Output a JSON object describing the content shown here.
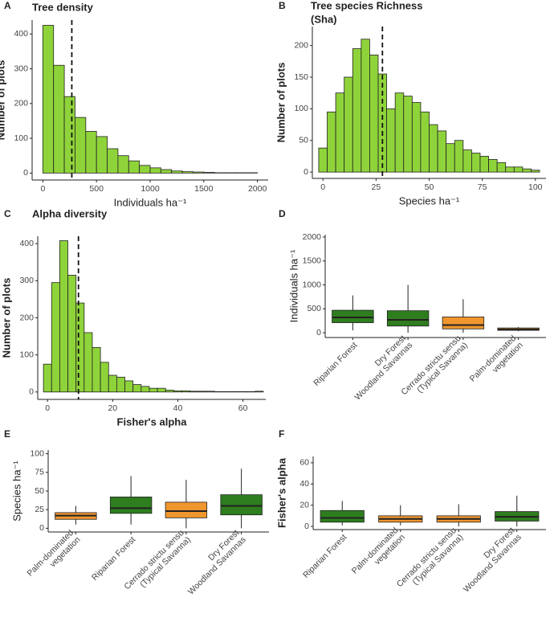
{
  "chart_data": [
    {
      "type": "histogram",
      "label": "A",
      "title": [
        "Tree density"
      ],
      "x_label": "Individuals ha⁻¹",
      "y_label": "Number of plots",
      "bins": [
        0,
        100,
        200,
        300,
        400,
        500,
        600,
        700,
        800,
        900,
        1000,
        1100,
        1200,
        1300,
        1400,
        1500,
        1600,
        1700,
        1800,
        1900,
        2000
      ],
      "values": [
        425,
        310,
        220,
        160,
        120,
        105,
        70,
        50,
        35,
        22,
        15,
        10,
        6,
        4,
        3,
        2,
        1,
        1,
        1,
        1
      ],
      "color": "#8fd33a",
      "vline": 270,
      "xlim": [
        -100,
        2100
      ],
      "xticks": [
        0,
        500,
        1000,
        1500,
        2000
      ],
      "ylim": [
        -20,
        440
      ],
      "yticks": [
        0,
        100,
        200,
        300,
        400
      ]
    },
    {
      "type": "histogram",
      "label": "B",
      "title": [
        "Tree species Richness",
        " (Sha)"
      ],
      "x_label": "Species ha⁻¹",
      "y_label": "Number of plots",
      "bins": [
        -2,
        2,
        6,
        10,
        14,
        18,
        22,
        26,
        30,
        34,
        38,
        42,
        46,
        50,
        54,
        58,
        62,
        66,
        70,
        74,
        78,
        82,
        86,
        90,
        94,
        98,
        102
      ],
      "values": [
        38,
        95,
        125,
        150,
        195,
        210,
        185,
        155,
        100,
        125,
        120,
        110,
        95,
        75,
        65,
        45,
        50,
        35,
        30,
        25,
        20,
        15,
        8,
        8,
        5,
        3
      ],
      "color": "#8fd33a",
      "vline": 28,
      "xlim": [
        -5,
        105
      ],
      "xticks": [
        0,
        25,
        50,
        75,
        100
      ],
      "ylim": [
        -10,
        230
      ],
      "yticks": [
        0,
        50,
        100,
        150,
        200
      ]
    },
    {
      "type": "histogram",
      "label": "C",
      "title": [
        "Alpha diversity"
      ],
      "x_label": "Fisher's alpha",
      "y_label": "Number of plots",
      "bins": [
        -1.25,
        1.25,
        3.75,
        6.25,
        8.75,
        11.25,
        13.75,
        16.25,
        18.75,
        21.25,
        23.75,
        26.25,
        28.75,
        31.25,
        33.75,
        36.25,
        38.75,
        41.25,
        43.75,
        46.25,
        48.75,
        51.25,
        53.75,
        56.25,
        58.75,
        61.25,
        63.75,
        66.25
      ],
      "values": [
        75,
        295,
        408,
        315,
        240,
        160,
        120,
        80,
        45,
        40,
        30,
        20,
        15,
        10,
        10,
        5,
        3,
        3,
        2,
        2,
        2,
        1,
        1,
        1,
        1,
        1,
        2
      ],
      "color": "#8fd33a",
      "vline": 9.5,
      "xlim": [
        -3,
        67
      ],
      "xticks": [
        0,
        20,
        40,
        60
      ],
      "ylim": [
        -20,
        420
      ],
      "yticks": [
        0,
        100,
        200,
        300,
        400
      ]
    },
    {
      "type": "box",
      "label": "D",
      "y_label": "Individuals ha⁻¹",
      "categories": [
        [
          "Riparian Forest"
        ],
        [
          "Dry Forest",
          "Woodland Savannas"
        ],
        [
          "Cerrado strictu sensu",
          "(Typical Savanna)"
        ],
        [
          "Palm-dominated",
          "vegetation"
        ]
      ],
      "boxes": [
        {
          "color": "#2e7d1e",
          "min": 50,
          "q1": 210,
          "median": 320,
          "q3": 470,
          "max": 780
        },
        {
          "color": "#2e7d1e",
          "min": 0,
          "q1": 140,
          "median": 270,
          "q3": 460,
          "max": 1000
        },
        {
          "color": "#f0962e",
          "min": 0,
          "q1": 80,
          "median": 160,
          "q3": 330,
          "max": 700
        },
        {
          "color": "#f0962e",
          "min": 30,
          "q1": 50,
          "median": 70,
          "q3": 100,
          "max": 120
        }
      ],
      "ylim": [
        -100,
        2050
      ],
      "yticks": [
        0,
        500,
        1000,
        1500,
        2000
      ]
    },
    {
      "type": "box",
      "label": "E",
      "y_label": "Species ha⁻¹",
      "categories": [
        [
          "Palm-dominated",
          "vegetation"
        ],
        [
          "Riparian Forest"
        ],
        [
          "Cerrado strictu sensu",
          "(Typical Savanna)"
        ],
        [
          "Dry Forest",
          "Woodland Savannas"
        ]
      ],
      "boxes": [
        {
          "color": "#f0962e",
          "min": 5,
          "q1": 12,
          "median": 17,
          "q3": 21,
          "max": 30
        },
        {
          "color": "#2e7d1e",
          "min": 5,
          "q1": 20,
          "median": 27,
          "q3": 42,
          "max": 70
        },
        {
          "color": "#f0962e",
          "min": 0,
          "q1": 14,
          "median": 23,
          "q3": 35,
          "max": 65
        },
        {
          "color": "#2e7d1e",
          "min": 0,
          "q1": 18,
          "median": 30,
          "q3": 45,
          "max": 80
        }
      ],
      "ylim": [
        -5,
        105
      ],
      "yticks": [
        0,
        25,
        50,
        75,
        100
      ]
    },
    {
      "type": "box",
      "label": "F",
      "y_label": "Fisher's alpha",
      "categories": [
        [
          "Riparian Forest"
        ],
        [
          "Palm-dominated",
          "vegetation"
        ],
        [
          "Cerrado strictu sensu",
          "(Typical Savanna)"
        ],
        [
          "Dry Forest",
          "Woodland Savannas"
        ]
      ],
      "boxes": [
        {
          "color": "#2e7d1e",
          "min": 1,
          "q1": 4,
          "median": 8,
          "q3": 15,
          "max": 24
        },
        {
          "color": "#f0962e",
          "min": 1,
          "q1": 4,
          "median": 7,
          "q3": 10,
          "max": 20
        },
        {
          "color": "#f0962e",
          "min": 0,
          "q1": 4,
          "median": 7,
          "q3": 10,
          "max": 21
        },
        {
          "color": "#2e7d1e",
          "min": 0,
          "q1": 5,
          "median": 9,
          "q3": 14,
          "max": 29
        }
      ],
      "ylim": [
        -3,
        66
      ],
      "yticks": [
        0,
        20,
        40,
        60
      ]
    }
  ]
}
